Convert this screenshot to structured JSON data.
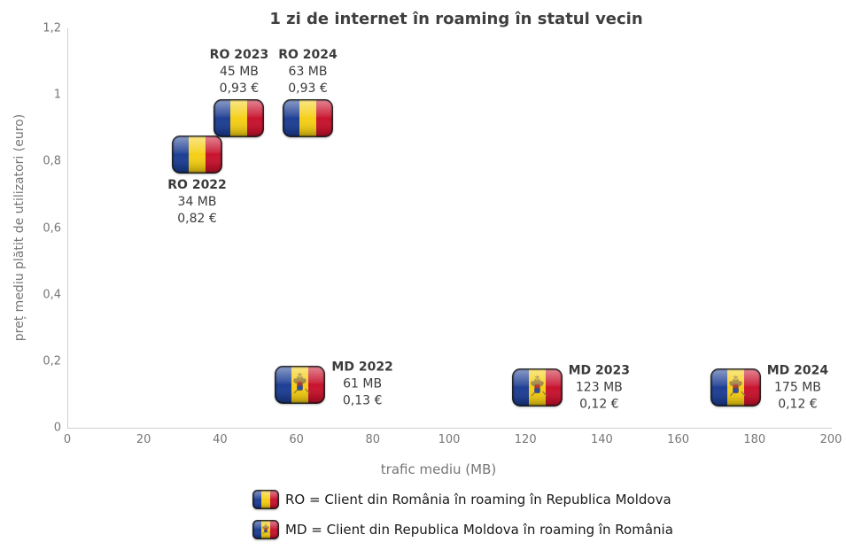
{
  "chart_data": {
    "type": "scatter",
    "title": "1 zi de internet în roaming în statul vecin",
    "xlabel": "trafic mediu (MB)",
    "ylabel": "preț mediu plătit de utilizatori (euro)",
    "xlim": [
      0,
      200
    ],
    "ylim": [
      0,
      1.2
    ],
    "grid": false,
    "xticks": [
      "0",
      "20",
      "40",
      "60",
      "80",
      "100",
      "120",
      "140",
      "160",
      "180",
      "200"
    ],
    "yticks": [
      "0",
      "0,2",
      "0,4",
      "0,6",
      "0,8",
      "1",
      "1,2"
    ],
    "points": [
      {
        "id": "RO-2022",
        "label": "RO 2022",
        "x": 34,
        "y": 0.82,
        "mb": "34 MB",
        "price": "0,82 €",
        "flag": "ro",
        "label_pos": "below"
      },
      {
        "id": "RO-2023",
        "label": "RO 2023",
        "x": 45,
        "y": 0.93,
        "mb": "45 MB",
        "price": "0,93 €",
        "flag": "ro",
        "label_pos": "above"
      },
      {
        "id": "RO-2024",
        "label": "RO 2024",
        "x": 63,
        "y": 0.93,
        "mb": "63 MB",
        "price": "0,93 €",
        "flag": "ro",
        "label_pos": "above"
      },
      {
        "id": "MD-2022",
        "label": "MD 2022",
        "x": 61,
        "y": 0.13,
        "mb": "61 MB",
        "price": "0,13 €",
        "flag": "md",
        "label_pos": "right"
      },
      {
        "id": "MD-2023",
        "label": "MD 2023",
        "x": 123,
        "y": 0.12,
        "mb": "123 MB",
        "price": "0,12 €",
        "flag": "md",
        "label_pos": "right"
      },
      {
        "id": "MD-2024",
        "label": "MD 2024",
        "x": 175,
        "y": 0.12,
        "mb": "175 MB",
        "price": "0,12 €",
        "flag": "md",
        "label_pos": "right"
      }
    ],
    "legend": [
      {
        "flag": "ro",
        "text": "RO = Client din România în roaming în Republica Moldova"
      },
      {
        "flag": "md",
        "text": "MD = Client din Republica Moldova în roaming în România"
      }
    ]
  },
  "colors": {
    "background": "#ffffff",
    "title_text": "#3f3f3f",
    "axis_text": "#767676",
    "label_text": "#3b3b3b",
    "legend_text": "#1a1a1a",
    "axis_line": "#d0d0d0",
    "flag_blue": "#1e3f94",
    "flag_yellow": "#f5cf16",
    "flag_red": "#c8132e",
    "emblem_gold": "#9a7b2d",
    "shield_red": "#b0342e",
    "shield_blue": "#2c4a9c"
  }
}
